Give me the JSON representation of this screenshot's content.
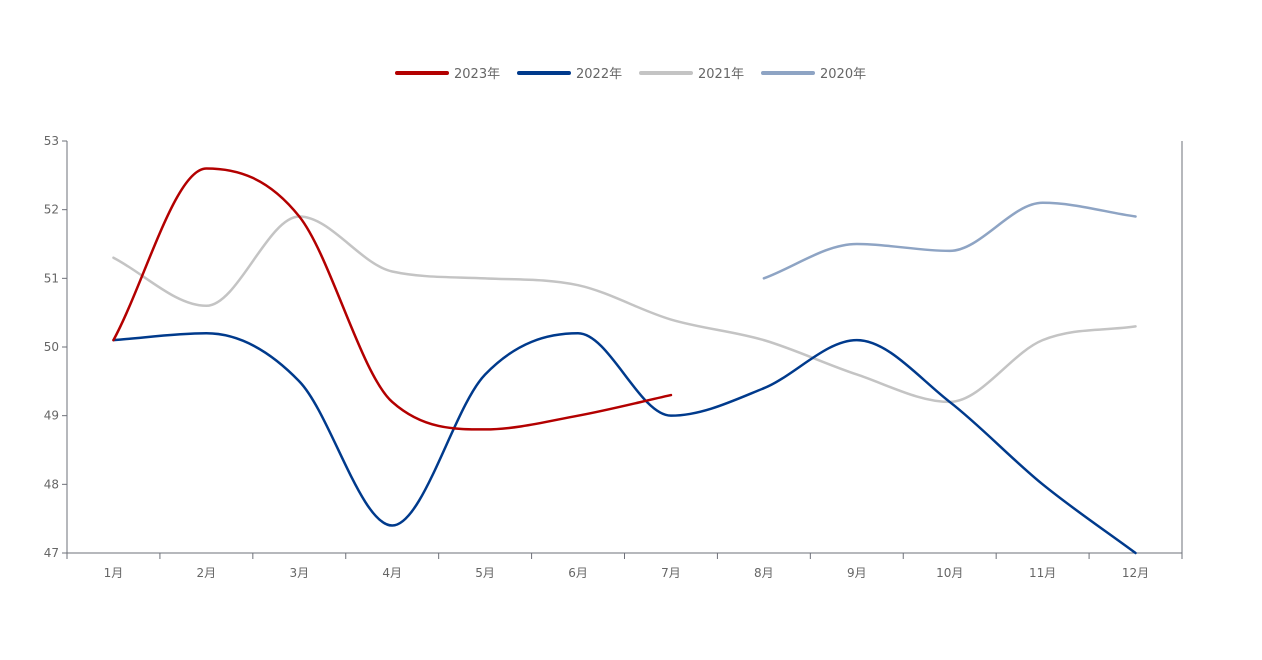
{
  "chart_data": {
    "type": "line",
    "categories": [
      "1月",
      "2月",
      "3月",
      "4月",
      "5月",
      "6月",
      "7月",
      "8月",
      "9月",
      "10月",
      "11月",
      "12月"
    ],
    "ylim": [
      47,
      53
    ],
    "yticks": [
      47,
      48,
      49,
      50,
      51,
      52,
      53
    ],
    "grid": false,
    "legend_position": "top-center",
    "series": [
      {
        "name": "2023年",
        "color": "#b30000",
        "values": [
          50.1,
          52.6,
          51.9,
          49.2,
          48.8,
          49.0,
          49.3,
          null,
          null,
          null,
          null,
          null
        ]
      },
      {
        "name": "2022年",
        "color": "#003a8c",
        "values": [
          50.1,
          50.2,
          49.5,
          47.4,
          49.6,
          50.2,
          49.0,
          49.4,
          50.1,
          49.2,
          48.0,
          47.0
        ]
      },
      {
        "name": "2021年",
        "color": "#c4c4c4",
        "values": [
          51.3,
          50.6,
          51.9,
          51.1,
          51.0,
          50.9,
          50.4,
          50.1,
          49.6,
          49.2,
          50.1,
          50.3
        ]
      },
      {
        "name": "2020年",
        "color": "#8ea4c4",
        "values": [
          null,
          null,
          null,
          null,
          null,
          null,
          null,
          51.0,
          51.5,
          51.4,
          52.1,
          51.9
        ]
      }
    ]
  }
}
